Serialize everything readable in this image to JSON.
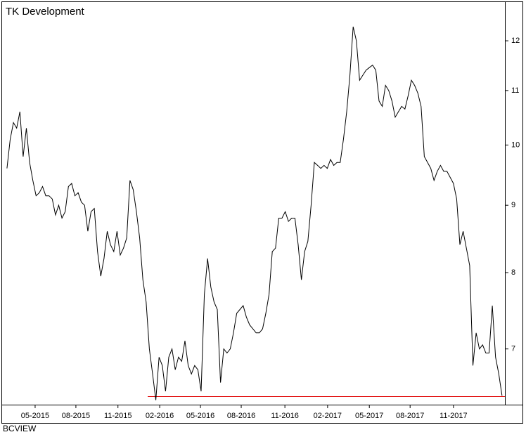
{
  "chart_data": {
    "type": "line",
    "title": "TK Development",
    "footer": "BCVIEW",
    "log_scale": true,
    "x": [
      0,
      1,
      2,
      3,
      4,
      5,
      6,
      7,
      8,
      9,
      10,
      11,
      12,
      13,
      14,
      15,
      16,
      17,
      18,
      19,
      20,
      21,
      22,
      23,
      24,
      25,
      26,
      27,
      28,
      29,
      30,
      31,
      32,
      33,
      34,
      35,
      36,
      37,
      38,
      39,
      40,
      41,
      42,
      43,
      44,
      45,
      46,
      47,
      48,
      49,
      50,
      51,
      52,
      53,
      54,
      55,
      56,
      57,
      58,
      59,
      60,
      61,
      62,
      63,
      64,
      65,
      66,
      67,
      68,
      69,
      70,
      71,
      72,
      73,
      74,
      75,
      76,
      77,
      78,
      79,
      80,
      81,
      82,
      83,
      84,
      85,
      86,
      87,
      88,
      89,
      90,
      91,
      92,
      93,
      94,
      95,
      96,
      97,
      98,
      99,
      100,
      101,
      102,
      103,
      104,
      105,
      106,
      107,
      108,
      109,
      110,
      111,
      112,
      113,
      114,
      115,
      116,
      117,
      118,
      119,
      120,
      121,
      122,
      123,
      124,
      125,
      126,
      127,
      128,
      129,
      130,
      131,
      132,
      133,
      134,
      135,
      136,
      137,
      138,
      139,
      140,
      141,
      142,
      143,
      144,
      145,
      146,
      147,
      148,
      149,
      150,
      151,
      152,
      153
    ],
    "series": [
      {
        "name": "TK Development",
        "color": "#000000",
        "values": [
          9.6,
          10.1,
          10.4,
          10.3,
          10.6,
          9.8,
          10.3,
          9.7,
          9.4,
          9.15,
          9.2,
          9.3,
          9.15,
          9.15,
          9.1,
          8.85,
          9.0,
          8.8,
          8.9,
          9.3,
          9.35,
          9.15,
          9.2,
          9.05,
          9.0,
          8.6,
          8.9,
          8.95,
          8.3,
          7.95,
          8.2,
          8.6,
          8.4,
          8.3,
          8.6,
          8.25,
          8.35,
          8.5,
          9.4,
          9.25,
          8.9,
          8.5,
          7.9,
          7.6,
          7.0,
          6.7,
          6.4,
          6.9,
          6.8,
          6.5,
          6.9,
          7.0,
          6.75,
          6.9,
          6.85,
          7.1,
          6.8,
          6.7,
          6.8,
          6.75,
          6.5,
          7.7,
          8.2,
          7.8,
          7.6,
          7.5,
          6.6,
          7.0,
          6.95,
          7.0,
          7.2,
          7.45,
          7.5,
          7.55,
          7.4,
          7.3,
          7.25,
          7.2,
          7.2,
          7.25,
          7.45,
          7.7,
          8.3,
          8.35,
          8.8,
          8.8,
          8.9,
          8.75,
          8.8,
          8.8,
          8.4,
          7.9,
          8.3,
          8.45,
          9.0,
          9.7,
          9.65,
          9.6,
          9.65,
          9.6,
          9.75,
          9.65,
          9.7,
          9.7,
          10.1,
          10.6,
          11.3,
          12.3,
          12.0,
          11.2,
          11.3,
          11.4,
          11.45,
          11.5,
          11.4,
          10.8,
          10.7,
          11.1,
          11.0,
          10.8,
          10.5,
          10.6,
          10.7,
          10.65,
          10.9,
          11.2,
          11.1,
          10.95,
          10.7,
          9.8,
          9.7,
          9.6,
          9.4,
          9.55,
          9.65,
          9.55,
          9.55,
          9.45,
          9.35,
          9.1,
          8.4,
          8.6,
          8.35,
          8.1,
          6.8,
          7.2,
          7.0,
          7.05,
          6.95,
          6.95,
          7.55,
          6.9,
          6.7,
          6.45
        ]
      }
    ],
    "support_line": {
      "y": 6.44,
      "x": [
        43.5,
        153.9
      ],
      "color": "#e00000"
    },
    "xlim": [
      -0.2,
      153.9
    ],
    "xticks": [
      {
        "value": 8.7,
        "label": "05-2015"
      },
      {
        "value": 21.3,
        "label": "08-2015"
      },
      {
        "value": 34.3,
        "label": "11-2015"
      },
      {
        "value": 47.2,
        "label": "02-2016"
      },
      {
        "value": 59.8,
        "label": "05-2016"
      },
      {
        "value": 72.4,
        "label": "08-2016"
      },
      {
        "value": 85.9,
        "label": "11-2016"
      },
      {
        "value": 99.1,
        "label": "02-2017"
      },
      {
        "value": 112.0,
        "label": "05-2017"
      },
      {
        "value": 124.6,
        "label": "08-2017"
      },
      {
        "value": 138.0,
        "label": "11-2017"
      }
    ],
    "ylim": [
      6.35,
      12.84
    ],
    "yticks": [
      7,
      8,
      9,
      10,
      11,
      12
    ],
    "title_color": "#e00000"
  }
}
